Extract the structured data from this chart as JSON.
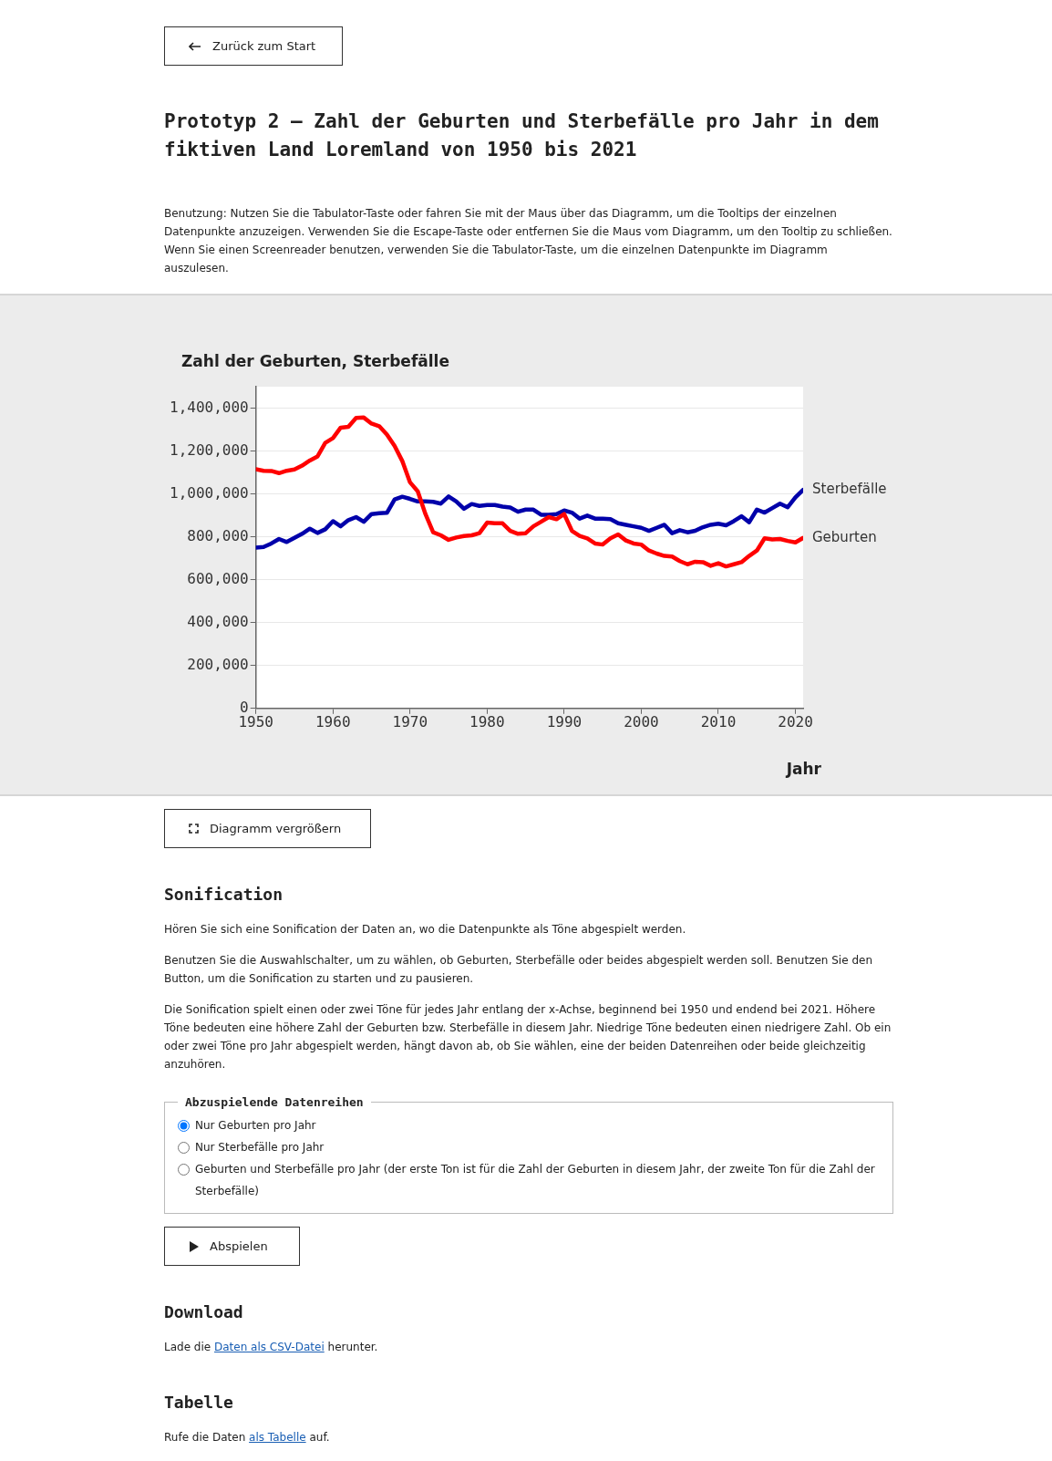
{
  "chart_data": {
    "type": "line",
    "title": "Prototyp 2 — Zahl der Geburten und Sterbefälle pro Jahr in dem fiktiven Land Loremland von 1950 bis 2021",
    "subtitle": "Benutzung: Nutzen Sie die Tabulator-Taste oder fahren Sie mit der Maus über das Diagramm, um die Tooltips der einzelnen Datenpunkte anzuzeigen. Verwenden Sie die Escape-Taste oder entfernen Sie die Maus vom Diagramm, um den Tooltip zu schließen. Wenn Sie einen Screenreader benutzen, verwenden Sie die Tabulator-Taste, um die einzelnen Datenpunkte im Diagramm auszulesen.",
    "ylabel": "Zahl der Geburten, Sterbefälle",
    "xlabel": "Jahr",
    "x": [
      1950,
      1951,
      1952,
      1953,
      1954,
      1955,
      1956,
      1957,
      1958,
      1959,
      1960,
      1961,
      1962,
      1963,
      1964,
      1965,
      1966,
      1967,
      1968,
      1969,
      1970,
      1971,
      1972,
      1973,
      1974,
      1975,
      1976,
      1977,
      1978,
      1979,
      1980,
      1981,
      1982,
      1983,
      1984,
      1985,
      1986,
      1987,
      1988,
      1989,
      1990,
      1991,
      1992,
      1993,
      1994,
      1995,
      1996,
      1997,
      1998,
      1999,
      2000,
      2001,
      2002,
      2003,
      2004,
      2005,
      2006,
      2007,
      2008,
      2009,
      2010,
      2011,
      2012,
      2013,
      2014,
      2015,
      2016,
      2017,
      2018,
      2019,
      2020,
      2021
    ],
    "series": [
      {
        "name": "Geburten",
        "color": "#ff0000",
        "values": [
          1115000,
          1108000,
          1107000,
          1097000,
          1108000,
          1114000,
          1132000,
          1156000,
          1175000,
          1238000,
          1260000,
          1309000,
          1313000,
          1354000,
          1356000,
          1328000,
          1316000,
          1277000,
          1224000,
          1153000,
          1054000,
          1012000,
          906000,
          821000,
          807000,
          786000,
          797000,
          804000,
          807000,
          817000,
          866000,
          863000,
          863000,
          828000,
          814000,
          817000,
          849000,
          870000,
          892000,
          882000,
          906000,
          828000,
          804000,
          793000,
          769000,
          764000,
          793000,
          811000,
          783000,
          769000,
          764000,
          736000,
          722000,
          711000,
          708000,
          687000,
          672000,
          684000,
          682000,
          665000,
          677000,
          662000,
          672000,
          682000,
          711000,
          736000,
          793000,
          788000,
          790000,
          781000,
          774000,
          795000
        ]
      },
      {
        "name": "Sterbefälle",
        "color": "#0000aa",
        "values": [
          750000,
          753000,
          769000,
          790000,
          776000,
          795000,
          814000,
          838000,
          818000,
          835000,
          873000,
          849000,
          878000,
          892000,
          870000,
          906000,
          910000,
          912000,
          974000,
          987000,
          977000,
          965000,
          965000,
          963000,
          955000,
          988000,
          965000,
          931000,
          953000,
          944000,
          948000,
          948000,
          941000,
          937000,
          917000,
          927000,
          927000,
          903000,
          903000,
          906000,
          923000,
          913000,
          885000,
          899000,
          885000,
          885000,
          882000,
          863000,
          856000,
          849000,
          842000,
          828000,
          842000,
          856000,
          817000,
          831000,
          821000,
          828000,
          845000,
          856000,
          861000,
          854000,
          873000,
          896000,
          868000,
          927000,
          913000,
          934000,
          955000,
          938000,
          984000,
          1019000
        ]
      }
    ],
    "xlim": [
      1950,
      2021
    ],
    "xticks": [
      1950,
      1960,
      1970,
      1980,
      1990,
      2000,
      2010,
      2020
    ],
    "ylim": [
      0,
      1500000
    ],
    "yticks": [
      0,
      {
        "value": 200000,
        "label": "200,000"
      },
      {
        "value": 400000,
        "label": "400,000"
      },
      {
        "value": 600000,
        "label": "600,000"
      },
      {
        "value": 800000,
        "label": "800,000"
      },
      {
        "value": 1000000,
        "label": "1,000,000"
      },
      {
        "value": 1200000,
        "label": "1,200,000"
      },
      {
        "value": 1400000,
        "label": "1,400,000"
      }
    ],
    "grid": "y",
    "legend": false,
    "marker": "none",
    "annotations": [
      "Zurück zum Start",
      "Diagramm vergrößern",
      "Sonification",
      "Hören Sie sich eine Sonification der Daten an, wo die Datenpunkte als Töne abgespielt werden.",
      "Benutzen Sie die Auswahlschalter, um zu wählen, ob Geburten, Sterbefälle oder beides abgespielt werden soll. Benutzen Sie den Button, um die Sonification zu starten und zu pausieren.",
      "Die Sonification spielt einen oder zwei Töne für jedes Jahr entlang der x-Achse, beginnend bei 1950 und endend bei 2021. Höhere Töne bedeuten eine höhere Zahl der Geburten bzw. Sterbefälle in diesem Jahr. Niedrige Töne bedeuten einen niedrigere Zahl. Ob ein oder zwei Töne pro Jahr abgespielt werden, hängt davon ab, ob Sie wählen, eine der beiden Datenreihen oder beide gleichzeitig anzuhören.",
      "Abzuspielende Datenreihen",
      "Nur Geburten pro Jahr",
      "Nur Sterbefälle pro Jahr",
      "Geburten und Sterbefälle pro Jahr (der erste Ton ist für die Zahl der Geburten in diesem Jahr, der zweite Ton für die Zahl der Sterbefälle)",
      "Abspielen",
      "Download",
      "Lade die",
      "Daten als CSV-Datei",
      "herunter.",
      "Tabelle",
      "Rufe die Daten",
      "als Tabelle",
      "auf."
    ]
  }
}
